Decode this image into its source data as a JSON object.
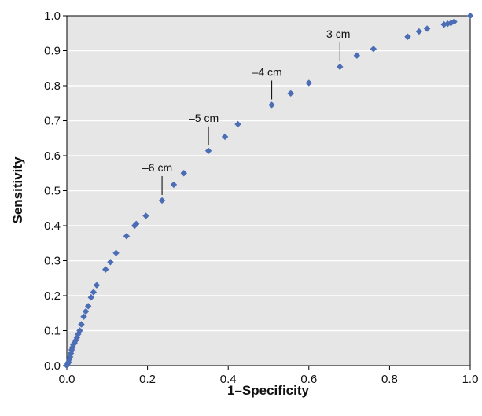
{
  "chart_data": {
    "type": "scatter",
    "xlabel": "1–Specificity",
    "ylabel": "Sensitivity",
    "xlim": [
      0,
      1
    ],
    "ylim": [
      0,
      1
    ],
    "grid": "horizontal",
    "marker": "diamond",
    "colors": {
      "marker": "#4a6db5",
      "plot_bg": "#e6e6e6",
      "grid": "#ffffff"
    },
    "x_ticks": [
      "0.0",
      "0.2",
      "0.4",
      "0.6",
      "0.8",
      "1.0"
    ],
    "y_ticks": [
      "0.0",
      "0.1",
      "0.2",
      "0.3",
      "0.4",
      "0.5",
      "0.6",
      "0.7",
      "0.8",
      "0.9",
      "1.0"
    ],
    "series": [
      {
        "points": [
          [
            0.0,
            0.0
          ],
          [
            0.002,
            0.005
          ],
          [
            0.004,
            0.01
          ],
          [
            0.006,
            0.018
          ],
          [
            0.008,
            0.025
          ],
          [
            0.01,
            0.035
          ],
          [
            0.012,
            0.045
          ],
          [
            0.014,
            0.052
          ],
          [
            0.016,
            0.06
          ],
          [
            0.019,
            0.065
          ],
          [
            0.022,
            0.072
          ],
          [
            0.025,
            0.08
          ],
          [
            0.028,
            0.09
          ],
          [
            0.032,
            0.1
          ],
          [
            0.036,
            0.118
          ],
          [
            0.042,
            0.14
          ],
          [
            0.047,
            0.155
          ],
          [
            0.053,
            0.17
          ],
          [
            0.06,
            0.195
          ],
          [
            0.066,
            0.21
          ],
          [
            0.074,
            0.23
          ],
          [
            0.096,
            0.275
          ],
          [
            0.108,
            0.296
          ],
          [
            0.122,
            0.322
          ],
          [
            0.148,
            0.37
          ],
          [
            0.168,
            0.4
          ],
          [
            0.172,
            0.405
          ],
          [
            0.196,
            0.428
          ],
          [
            0.236,
            0.472
          ],
          [
            0.265,
            0.517
          ],
          [
            0.29,
            0.55
          ],
          [
            0.351,
            0.614
          ],
          [
            0.392,
            0.654
          ],
          [
            0.424,
            0.69
          ],
          [
            0.508,
            0.745
          ],
          [
            0.555,
            0.778
          ],
          [
            0.6,
            0.808
          ],
          [
            0.677,
            0.854
          ],
          [
            0.719,
            0.886
          ],
          [
            0.76,
            0.905
          ],
          [
            0.845,
            0.94
          ],
          [
            0.873,
            0.955
          ],
          [
            0.893,
            0.963
          ],
          [
            0.935,
            0.975
          ],
          [
            0.944,
            0.977
          ],
          [
            0.952,
            0.979
          ],
          [
            0.96,
            0.983
          ],
          [
            1.0,
            1.0
          ]
        ]
      }
    ],
    "annotations": [
      {
        "text": "–6 cm",
        "x": 0.236,
        "y": 0.472
      },
      {
        "text": "–5 cm",
        "x": 0.351,
        "y": 0.614
      },
      {
        "text": "–4 cm",
        "x": 0.508,
        "y": 0.745
      },
      {
        "text": "–3 cm",
        "x": 0.677,
        "y": 0.854
      }
    ]
  }
}
